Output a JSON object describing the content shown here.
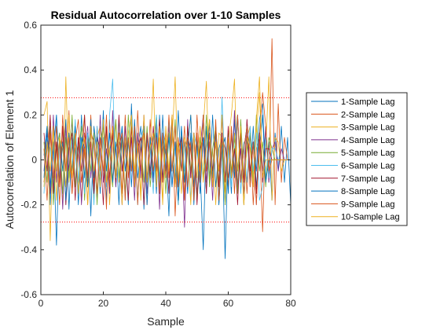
{
  "chart_data": {
    "type": "line",
    "title": "Residual Autocorrelation over 1-10 Samples",
    "xlabel": "Sample",
    "ylabel": "Autocorrelation of Element 1",
    "xlim": [
      0,
      80
    ],
    "ylim": [
      -0.6,
      0.6
    ],
    "xticks": [
      0,
      20,
      40,
      60,
      80
    ],
    "yticks": [
      -0.6,
      -0.4,
      -0.2,
      0,
      0.2,
      0.4,
      0.6
    ],
    "grid": false,
    "legend_position": "right",
    "confidence_bounds": [
      0.277,
      -0.277
    ],
    "confidence_color": "#ff0000",
    "colors": [
      "#0072BD",
      "#D95319",
      "#EDB120",
      "#7E2F8E",
      "#77AC30",
      "#4DBEEE",
      "#A2142F",
      "#0072BD",
      "#D95319",
      "#EDB120"
    ],
    "series": [
      {
        "name": "1-Sample Lag",
        "lag": 1,
        "values": [
          0.02,
          0.15,
          -0.2,
          0.08,
          -0.38,
          0.12,
          -0.05,
          0.18,
          -0.22,
          0.1,
          0.05,
          -0.15,
          0.2,
          -0.08,
          0.12,
          -0.25,
          0.15,
          0.02,
          -0.1,
          0.22,
          -0.18,
          0.05,
          0.1,
          -0.12,
          0.18,
          -0.05,
          0.08,
          -0.2,
          0.25,
          -0.1,
          0.05,
          0.15,
          -0.22,
          0.1,
          -0.05,
          0.12,
          -0.15,
          0.2,
          -0.08,
          0.05,
          -0.25,
          0.18,
          -0.1,
          0.22,
          -0.05,
          0.08,
          -0.15,
          0.12,
          -0.2,
          0.1,
          -0.05,
          -0.4,
          0.15,
          -0.08,
          0.2,
          -0.12,
          0.05,
          0.1,
          -0.44,
          0.08,
          -0.15,
          0.18,
          -0.05,
          0.12,
          -0.2,
          0.1,
          -0.08,
          0.15,
          -0.12,
          0.05,
          0.2,
          -0.1,
          0.08,
          -0.18,
          0.12,
          -0.05,
          0.15,
          -0.1,
          0.1,
          -0.2
        ]
      },
      {
        "name": "2-Sample Lag",
        "lag": 2,
        "values": [
          -0.1,
          0.05,
          0.18,
          -0.12,
          0.08,
          -0.2,
          0.15,
          -0.05,
          0.22,
          -0.15,
          0.1,
          0.02,
          -0.18,
          0.12,
          -0.08,
          0.2,
          -0.12,
          0.15,
          -0.05,
          0.1,
          -0.22,
          0.18,
          -0.1,
          0.05,
          0.12,
          -0.15,
          0.2,
          -0.08,
          0.1,
          -0.12,
          0.22,
          -0.05,
          0.15,
          -0.2,
          0.08,
          -0.1,
          0.18,
          -0.15,
          0.05,
          0.12,
          -0.08,
          0.2,
          -0.25,
          0.1,
          -0.05,
          0.15,
          -0.12,
          0.08,
          -0.18,
          0.2,
          -0.05,
          0.1,
          -0.15,
          0.12,
          -0.08,
          0.18,
          -0.2,
          0.05,
          0.1,
          -0.12,
          0.15,
          -0.05,
          0.2,
          -0.1,
          0.08,
          -0.15,
          0.12,
          -0.2,
          0.05,
          0.1,
          -0.32,
          0.15,
          -0.1,
          0.54,
          -0.2,
          0.25,
          -0.1,
          0.1,
          0.0,
          0.0
        ]
      },
      {
        "name": "3-Sample Lag",
        "lag": 3,
        "values": [
          0.2,
          0.26,
          -0.36,
          0.15,
          -0.05,
          0.1,
          -0.2,
          0.37,
          -0.1,
          0.05,
          0.12,
          -0.15,
          0.08,
          0.2,
          -0.12,
          0.05,
          -0.18,
          0.1,
          0.15,
          -0.08,
          0.12,
          -0.2,
          0.05,
          0.18,
          -0.1,
          0.08,
          -0.15,
          0.12,
          0.2,
          -0.05,
          0.1,
          -0.18,
          0.15,
          -0.08,
          0.05,
          0.36,
          -0.12,
          0.1,
          -0.2,
          0.15,
          -0.05,
          0.08,
          0.37,
          -0.1,
          0.12,
          -0.15,
          0.05,
          0.2,
          -0.12,
          0.08,
          -0.05,
          0.15,
          0.35,
          -0.1,
          0.05,
          -0.2,
          0.12,
          0.1,
          -0.15,
          0.08,
          0.2,
          0.36,
          -0.12,
          0.05,
          -0.2,
          0.1,
          0.15,
          -0.08,
          0.12,
          0.3,
          -0.1,
          0.05,
          0.37,
          -0.18,
          0.1,
          0.08,
          -0.05,
          0.0,
          0.0,
          0.0
        ]
      },
      {
        "name": "4-Sample Lag",
        "lag": 4,
        "values": [
          -0.05,
          0.12,
          -0.15,
          0.2,
          -0.1,
          0.08,
          -0.22,
          0.15,
          -0.05,
          0.18,
          -0.12,
          0.1,
          -0.2,
          0.05,
          0.15,
          -0.08,
          0.12,
          -0.18,
          0.2,
          -0.1,
          0.05,
          -0.15,
          0.22,
          -0.12,
          0.08,
          -0.2,
          0.15,
          -0.05,
          0.1,
          -0.18,
          0.12,
          -0.08,
          0.2,
          -0.15,
          0.05,
          -0.1,
          0.18,
          -0.22,
          0.12,
          -0.05,
          0.15,
          -0.12,
          0.08,
          -0.2,
          0.1,
          -0.3,
          0.18,
          -0.08,
          0.12,
          -0.15,
          0.05,
          0.2,
          -0.1,
          0.08,
          -0.18,
          0.15,
          -0.05,
          0.12,
          -0.2,
          0.1,
          -0.08,
          0.22,
          -0.12,
          0.05,
          -0.15,
          0.18,
          -0.1,
          0.08,
          -0.2,
          0.12,
          -0.05,
          0.15,
          -0.1,
          0.05,
          0.08,
          -0.05,
          0.05,
          0.0,
          0.0,
          0.0
        ]
      },
      {
        "name": "5-Sample Lag",
        "lag": 5,
        "values": [
          0.08,
          -0.1,
          0.15,
          -0.2,
          0.05,
          0.12,
          -0.15,
          0.1,
          -0.08,
          0.2,
          -0.12,
          0.05,
          0.15,
          -0.18,
          0.1,
          -0.05,
          0.12,
          -0.2,
          0.08,
          0.15,
          -0.1,
          0.05,
          -0.12,
          0.18,
          -0.08,
          0.1,
          -0.15,
          0.2,
          -0.05,
          0.12,
          -0.18,
          0.08,
          -0.1,
          0.15,
          -0.12,
          0.05,
          0.2,
          -0.08,
          0.1,
          -0.15,
          0.12,
          -0.05,
          0.18,
          -0.2,
          0.08,
          -0.1,
          0.15,
          -0.05,
          0.12,
          -0.18,
          0.1,
          -0.08,
          0.2,
          -0.12,
          0.05,
          0.15,
          -0.1,
          0.08,
          -0.2,
          0.12,
          -0.05,
          0.1,
          -0.15,
          0.18,
          -0.08,
          0.05,
          0.12,
          -0.1,
          0.2,
          -0.05,
          0.08,
          -0.12,
          0.1,
          0.05,
          0.0,
          0.0,
          0.0,
          0.0,
          0.0,
          0.0
        ]
      },
      {
        "name": "6-Sample Lag",
        "lag": 6,
        "values": [
          -0.15,
          0.1,
          0.05,
          -0.12,
          0.2,
          -0.08,
          0.15,
          -0.2,
          0.1,
          -0.05,
          0.18,
          -0.1,
          0.08,
          -0.15,
          0.12,
          0.05,
          -0.2,
          0.15,
          -0.08,
          0.1,
          -0.12,
          0.2,
          0.36,
          -0.1,
          0.05,
          0.15,
          -0.18,
          0.08,
          -0.05,
          0.12,
          -0.2,
          0.1,
          0.15,
          -0.08,
          0.05,
          -0.15,
          0.2,
          -0.1,
          0.12,
          -0.05,
          0.18,
          -0.12,
          0.08,
          -0.2,
          0.15,
          -0.05,
          0.1,
          -0.18,
          0.12,
          0.05,
          -0.1,
          0.2,
          -0.15,
          0.08,
          -0.05,
          0.12,
          -0.2,
          0.28,
          -0.08,
          0.1,
          -0.12,
          0.05,
          0.2,
          -0.15,
          0.08,
          -0.1,
          0.15,
          -0.05,
          0.12,
          -0.18,
          -0.12,
          0.1,
          -0.08,
          0.05,
          0.05,
          0.0,
          0.0,
          0.0,
          0.0,
          0.0
        ]
      },
      {
        "name": "7-Sample Lag",
        "lag": 7,
        "values": [
          0.12,
          -0.05,
          0.2,
          -0.15,
          0.08,
          -0.1,
          0.15,
          -0.2,
          0.05,
          0.12,
          -0.18,
          0.1,
          -0.05,
          0.2,
          -0.12,
          0.08,
          -0.15,
          0.1,
          0.05,
          -0.2,
          0.15,
          -0.08,
          0.12,
          -0.1,
          0.2,
          -0.05,
          0.08,
          -0.18,
          0.15,
          -0.12,
          0.05,
          0.1,
          -0.2,
          0.12,
          -0.08,
          0.15,
          -0.05,
          0.18,
          -0.1,
          0.08,
          -0.15,
          0.2,
          -0.12,
          0.05,
          0.1,
          -0.18,
          0.15,
          -0.08,
          0.12,
          -0.2,
          0.05,
          0.1,
          -0.15,
          0.18,
          -0.05,
          0.08,
          -0.12,
          0.2,
          -0.1,
          0.15,
          -0.08,
          0.05,
          -0.2,
          0.12,
          -0.1,
          0.18,
          -0.05,
          0.08,
          -0.15,
          0.12,
          -0.1,
          0.05,
          0.05,
          0.0,
          0.0,
          0.0,
          0.0,
          0.0,
          0.0,
          0.0
        ]
      },
      {
        "name": "8-Sample Lag",
        "lag": 8,
        "values": [
          -0.08,
          0.15,
          -0.12,
          0.05,
          0.2,
          -0.1,
          0.08,
          -0.18,
          0.12,
          -0.05,
          0.15,
          -0.2,
          0.1,
          0.05,
          -0.12,
          0.18,
          -0.08,
          0.1,
          -0.15,
          0.2,
          -0.05,
          0.12,
          -0.1,
          0.08,
          -0.2,
          0.15,
          -0.05,
          0.1,
          -0.12,
          0.18,
          -0.08,
          0.05,
          0.15,
          -0.2,
          0.1,
          -0.08,
          0.12,
          -0.15,
          0.2,
          -0.05,
          0.1,
          -0.12,
          0.08,
          -0.18,
          0.15,
          -0.1,
          0.05,
          0.2,
          -0.12,
          0.08,
          -0.15,
          0.1,
          -0.05,
          0.18,
          -0.08,
          0.12,
          -0.2,
          0.05,
          0.1,
          -0.15,
          0.12,
          -0.08,
          0.2,
          -0.1,
          0.05,
          0.15,
          -0.12,
          0.08,
          -0.05,
          0.18,
          0.25,
          -0.1,
          0.0,
          0.0,
          0.0,
          0.0,
          0.0,
          0.0,
          0.0,
          0.0
        ]
      },
      {
        "name": "9-Sample Lag",
        "lag": 9,
        "values": [
          0.05,
          -0.18,
          0.12,
          -0.08,
          0.15,
          -0.12,
          0.2,
          -0.05,
          0.1,
          -0.15,
          0.08,
          0.18,
          -0.1,
          0.05,
          -0.2,
          0.12,
          0.08,
          -0.15,
          0.1,
          -0.05,
          0.2,
          -0.12,
          0.15,
          -0.08,
          0.05,
          0.12,
          -0.18,
          0.1,
          -0.05,
          0.15,
          -0.2,
          0.08,
          0.12,
          -0.1,
          0.18,
          -0.05,
          0.1,
          -0.15,
          0.12,
          -0.08,
          0.2,
          -0.05,
          0.15,
          -0.12,
          0.08,
          -0.18,
          0.1,
          0.05,
          -0.15,
          0.12,
          -0.1,
          0.2,
          -0.05,
          0.08,
          -0.12,
          0.15,
          -0.18,
          0.1,
          0.05,
          -0.08,
          0.12,
          -0.15,
          0.2,
          -0.1,
          0.05,
          0.15,
          -0.12,
          0.08,
          -0.2,
          0.1,
          0.3,
          0.15,
          -0.05,
          0.0,
          0.0,
          0.0,
          0.0,
          0.0,
          0.0,
          0.0
        ]
      },
      {
        "name": "10-Sample Lag",
        "lag": 10,
        "values": [
          -0.12,
          0.08,
          -0.05,
          0.15,
          -0.18,
          0.1,
          0.05,
          -0.12,
          0.2,
          -0.08,
          0.12,
          -0.15,
          0.05,
          0.1,
          -0.2,
          0.15,
          -0.05,
          0.08,
          -0.12,
          0.18,
          -0.1,
          0.05,
          0.15,
          -0.08,
          0.12,
          -0.2,
          0.1,
          -0.05,
          0.18,
          -0.12,
          0.08,
          -0.15,
          0.2,
          -0.1,
          0.05,
          0.12,
          -0.08,
          0.15,
          -0.18,
          0.1,
          -0.05,
          0.2,
          -0.12,
          0.08,
          -0.15,
          0.1,
          0.05,
          -0.2,
          0.12,
          -0.08,
          0.15,
          -0.1,
          0.05,
          0.18,
          -0.12,
          0.08,
          -0.05,
          0.2,
          -0.15,
          0.1,
          -0.08,
          0.12,
          -0.05,
          0.15,
          -0.2,
          0.1,
          0.05,
          -0.12,
          0.18,
          0.37,
          -0.08,
          0.0,
          0.0,
          0.0,
          0.0,
          0.0,
          0.0,
          0.0,
          0.0,
          0.0
        ]
      }
    ]
  }
}
